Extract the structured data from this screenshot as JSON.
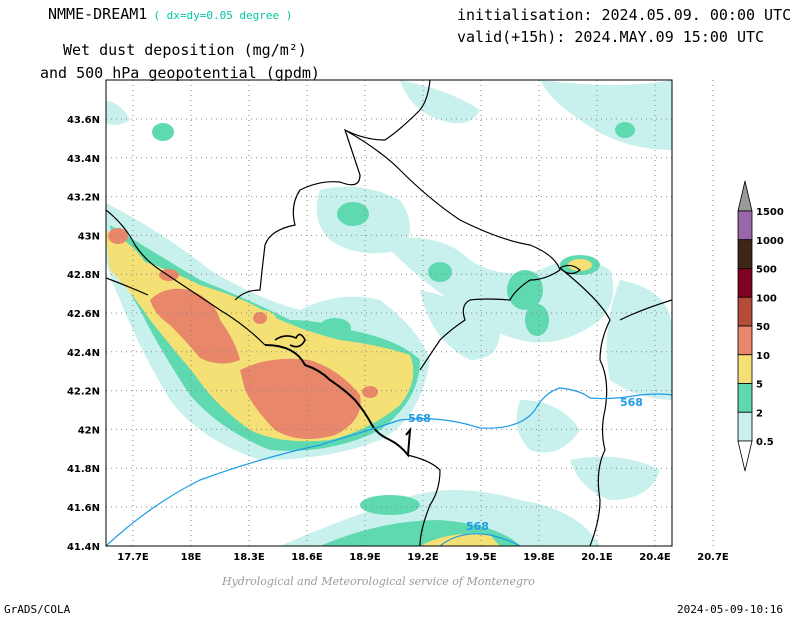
{
  "header": {
    "model": "NMME-DREAM1",
    "resolution": "( dx=dy=0.05 degree )",
    "title_line1": "Wet dust deposition (mg/m²)",
    "title_line2": "and 500 hPa geopotential (gpdm)",
    "init": "initialisation: 2024.05.09. 00:00 UTC",
    "valid": "valid(+15h): 2024.MAY.09 15:00 UTC"
  },
  "map": {
    "lon_ticks": [
      "17.7E",
      "18E",
      "18.3E",
      "18.6E",
      "18.9E",
      "19.2E",
      "19.5E",
      "19.8E",
      "20.1E",
      "20.4E",
      "20.7E"
    ],
    "lat_ticks": [
      "43.6N",
      "43.4N",
      "43.2N",
      "43N",
      "42.8N",
      "42.6N",
      "42.4N",
      "42.2N",
      "42N",
      "41.8N",
      "41.6N",
      "41.4N"
    ],
    "contour_labels": [
      "568",
      "568",
      "568"
    ],
    "contour_color": "#1e9be6",
    "grid": "dotted"
  },
  "colorbar": {
    "levels": [
      "1500",
      "1000",
      "500",
      "100",
      "50",
      "10",
      "5",
      "2",
      "0.5"
    ],
    "colors": [
      "#999999",
      "#9966aa",
      "#3d2617",
      "#800020",
      "#b34d3a",
      "#e8876a",
      "#f5e076",
      "#5ed9b0",
      "#c8f0ec"
    ]
  },
  "footer": {
    "credit": "Hydrological and Meteorological service of Montenegro",
    "software": "GrADS/COLA",
    "timestamp": "2024-05-09-10:16"
  }
}
